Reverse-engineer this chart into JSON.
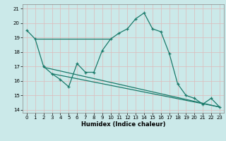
{
  "title": "",
  "xlabel": "Humidex (Indice chaleur)",
  "bg_color": "#cbe9e9",
  "grid_color": "#b0d4cc",
  "line_color": "#1a7a6a",
  "ylim": [
    13.8,
    21.3
  ],
  "xlim": [
    -0.5,
    23.5
  ],
  "yticks": [
    14,
    15,
    16,
    17,
    18,
    19,
    20,
    21
  ],
  "xticks": [
    0,
    1,
    2,
    3,
    4,
    5,
    6,
    7,
    8,
    9,
    10,
    11,
    12,
    13,
    14,
    15,
    16,
    17,
    18,
    19,
    20,
    21,
    22,
    23
  ],
  "humidex": [
    19.5,
    18.9,
    17.0,
    16.5,
    16.1,
    15.6,
    17.2,
    16.6,
    16.6,
    18.1,
    18.9,
    19.3,
    19.6,
    20.3,
    20.7,
    19.6,
    19.4,
    17.9,
    15.8,
    15.0,
    14.8,
    14.4,
    14.8,
    14.2
  ],
  "trend1_x": [
    2,
    23
  ],
  "trend1_y": [
    16.95,
    14.2
  ],
  "trend2_x": [
    3,
    23
  ],
  "trend2_y": [
    16.5,
    14.2
  ],
  "flat_line_y": 18.9,
  "flat_line_x": [
    1,
    10
  ]
}
